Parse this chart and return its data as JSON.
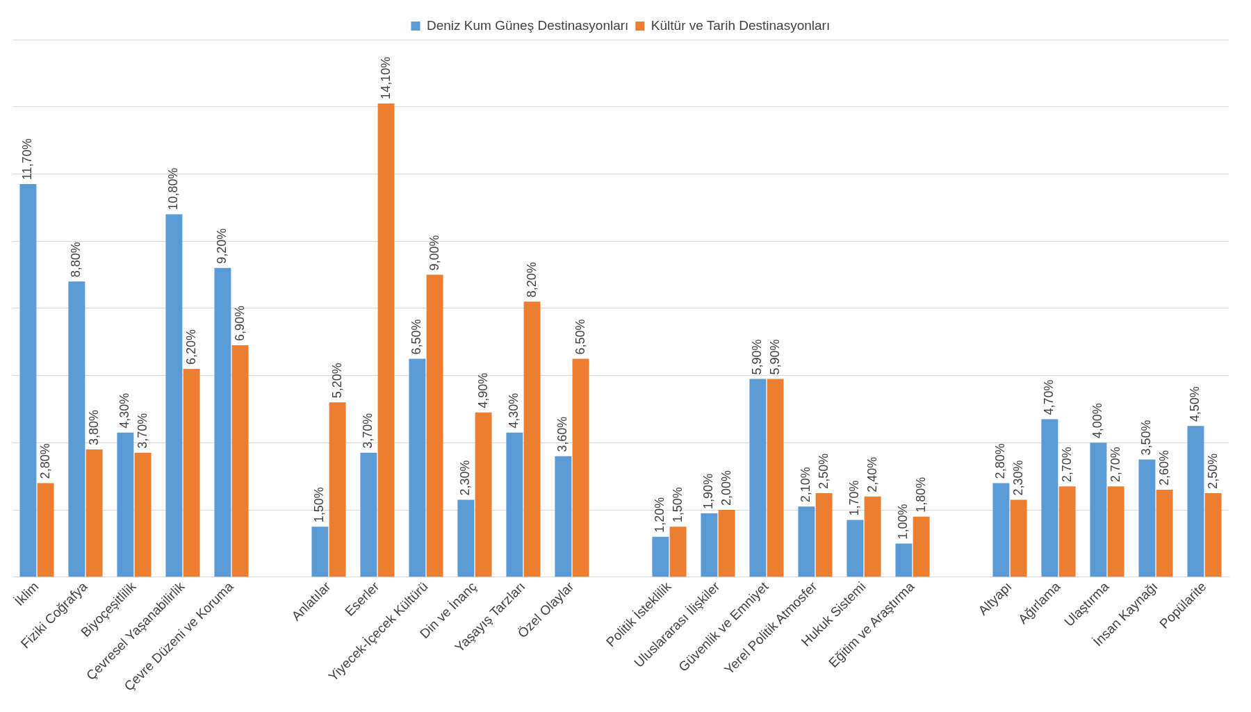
{
  "chart_data": {
    "type": "bar",
    "categories": [
      "İklim",
      "Fiziki Coğrafya",
      "Biyoçeşitlilik",
      "Çevresel Yaşanabilirlik",
      "Çevre Düzeni ve Koruma",
      null,
      "Anlatılar",
      "Eserler",
      "Yiyecek-İçecek Kültürü",
      "Din ve İnanç",
      "Yaşayış Tarzları",
      "Özel Olaylar",
      null,
      "Politik İsteklilik",
      "Uluslararası İlişkiler",
      "Güvenlik ve Emniyet",
      "Yerel Politik Atmosfer",
      "Hukuk Sistemi",
      "Eğitim ve Araştırma",
      null,
      "Altyapı",
      "Ağırlama",
      "Ulaştırma",
      "İnsan Kaynağı",
      "Popülarite"
    ],
    "series": [
      {
        "name": "Deniz Kum Güneş Destinasyonları",
        "color": "#5b9bd5",
        "values": [
          11.7,
          8.8,
          4.3,
          10.8,
          9.2,
          null,
          1.5,
          3.7,
          6.5,
          2.3,
          4.3,
          3.6,
          null,
          1.2,
          1.9,
          5.9,
          2.1,
          1.7,
          1.0,
          null,
          2.8,
          4.7,
          4.0,
          3.5,
          4.5
        ],
        "value_labels": [
          "11,70%",
          "8,80%",
          "4,30%",
          "10,80%",
          "9,20%",
          null,
          "1,50%",
          "3,70%",
          "6,50%",
          "2,30%",
          "4,30%",
          "3,60%",
          null,
          "1,20%",
          "1,90%",
          "5,90%",
          "2,10%",
          "1,70%",
          "1,00%",
          null,
          "2,80%",
          "4,70%",
          "4,00%",
          "3,50%",
          "4,50%"
        ]
      },
      {
        "name": "Kültür ve Tarih Destinasyonları",
        "color": "#ed7d31",
        "values": [
          2.8,
          3.8,
          3.7,
          6.2,
          6.9,
          null,
          5.2,
          14.1,
          9.0,
          4.9,
          8.2,
          6.5,
          null,
          1.5,
          2.0,
          5.9,
          2.5,
          2.4,
          1.8,
          null,
          2.3,
          2.7,
          2.7,
          2.6,
          2.5
        ],
        "value_labels": [
          "2,80%",
          "3,80%",
          "3,70%",
          "6,20%",
          "6,90%",
          null,
          "5,20%",
          "14,10%",
          "9,00%",
          "4,90%",
          "8,20%",
          "6,50%",
          null,
          "1,50%",
          "2,00%",
          "5,90%",
          "2,50%",
          "2,40%",
          "1,80%",
          null,
          "2,30%",
          "2,70%",
          "2,70%",
          "2,60%",
          "2,50%"
        ]
      }
    ],
    "ylim": [
      0,
      16
    ],
    "yticks": [
      0,
      {
        "value": 2,
        "label": null
      },
      {
        "value": 4,
        "label": null
      },
      {
        "value": 6,
        "label": null
      },
      {
        "value": 8,
        "label": null
      },
      {
        "value": 10,
        "label": null
      },
      {
        "value": 12,
        "label": null
      },
      {
        "value": 14,
        "label": null
      },
      {
        "value": 16,
        "label": null
      }
    ],
    "tick_labels": "x",
    "grid": "y",
    "legend": "top"
  }
}
